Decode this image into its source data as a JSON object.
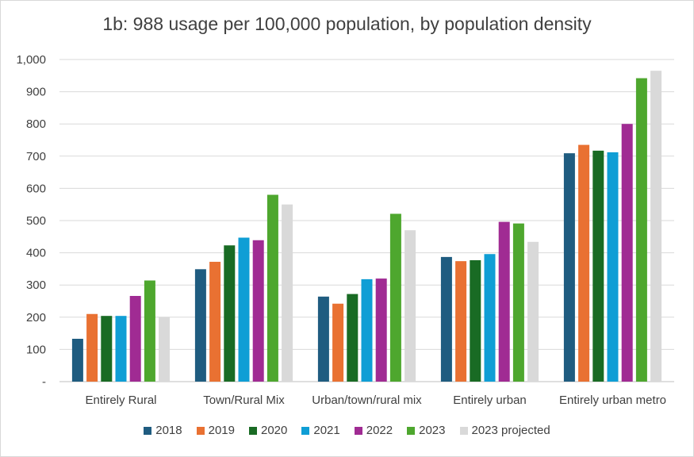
{
  "chart_data": {
    "type": "bar",
    "title": "1b: 988 usage per 100,000 population, by population density",
    "xlabel": "",
    "ylabel": "",
    "ylim": [
      0,
      1000
    ],
    "yticks": [
      "-",
      "100",
      "200",
      "300",
      "400",
      "500",
      "600",
      "700",
      "800",
      "900",
      "1,000"
    ],
    "grid": true,
    "legend_position": "bottom",
    "categories": [
      "Entirely Rural",
      "Town/Rural Mix",
      "Urban/town/rural mix",
      "Entirely urban",
      "Entirely urban metro"
    ],
    "series": [
      {
        "name": "2018",
        "color": "#1f5c80",
        "values": [
          133,
          349,
          264,
          387,
          709
        ]
      },
      {
        "name": "2019",
        "color": "#e97132",
        "values": [
          210,
          372,
          242,
          374,
          735
        ]
      },
      {
        "name": "2020",
        "color": "#196b24",
        "values": [
          204,
          423,
          272,
          377,
          717
        ]
      },
      {
        "name": "2021",
        "color": "#0f9ed5",
        "values": [
          204,
          447,
          318,
          396,
          712
        ]
      },
      {
        "name": "2022",
        "color": "#a02b93",
        "values": [
          266,
          439,
          320,
          496,
          800
        ]
      },
      {
        "name": "2023",
        "color": "#4ea72e",
        "values": [
          314,
          580,
          521,
          491,
          942
        ]
      },
      {
        "name": "2023 projected",
        "color": "#d9d9d9",
        "values": [
          200,
          550,
          470,
          434,
          965
        ]
      }
    ]
  }
}
